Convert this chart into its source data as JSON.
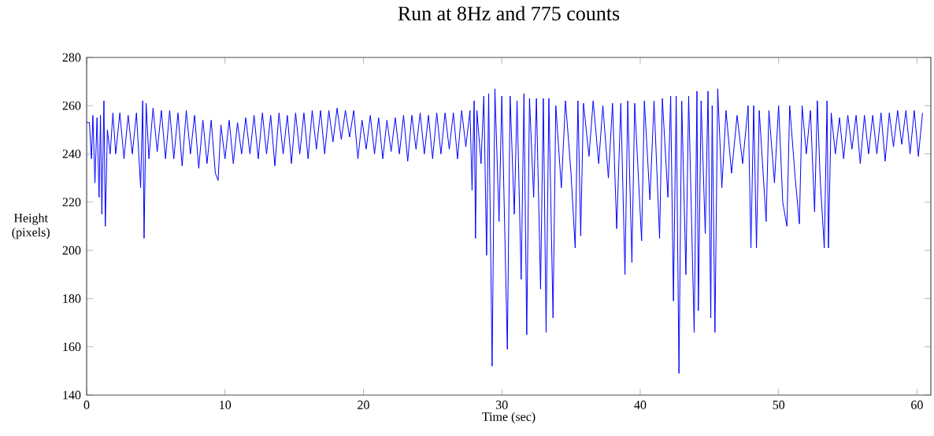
{
  "chart_data": {
    "type": "line",
    "title": "Run at 8Hz and 775 counts",
    "xlabel": "Time (sec)",
    "ylabel": "Height (pixels)",
    "x": [
      0.0,
      0.2,
      0.35,
      0.45,
      0.6,
      0.75,
      0.9,
      1.0,
      1.1,
      1.25,
      1.35,
      1.5,
      1.7,
      1.9,
      2.1,
      2.4,
      2.7,
      3.0,
      3.3,
      3.6,
      3.9,
      4.05,
      4.15,
      4.3,
      4.5,
      4.8,
      5.1,
      5.4,
      5.7,
      6.0,
      6.3,
      6.6,
      6.9,
      7.2,
      7.5,
      7.8,
      8.1,
      8.4,
      8.7,
      9.0,
      9.3,
      9.5,
      9.7,
      10.0,
      10.3,
      10.6,
      10.9,
      11.2,
      11.5,
      11.8,
      12.1,
      12.4,
      12.7,
      13.0,
      13.3,
      13.6,
      13.9,
      14.2,
      14.5,
      14.8,
      15.1,
      15.4,
      15.7,
      16.0,
      16.3,
      16.6,
      16.9,
      17.2,
      17.5,
      17.8,
      18.1,
      18.4,
      18.7,
      19.0,
      19.3,
      19.6,
      19.9,
      20.2,
      20.5,
      20.8,
      21.1,
      21.4,
      21.7,
      22.0,
      22.3,
      22.6,
      22.9,
      23.2,
      23.5,
      23.8,
      24.1,
      24.4,
      24.7,
      25.0,
      25.3,
      25.6,
      25.9,
      26.2,
      26.5,
      26.8,
      27.1,
      27.4,
      27.7,
      27.85,
      28.0,
      28.1,
      28.2,
      28.5,
      28.7,
      28.9,
      29.05,
      29.3,
      29.5,
      29.8,
      30.0,
      30.4,
      30.6,
      30.9,
      31.1,
      31.4,
      31.6,
      31.8,
      32.0,
      32.3,
      32.5,
      32.8,
      33.0,
      33.2,
      33.4,
      33.7,
      33.9,
      34.3,
      34.6,
      35.0,
      35.3,
      35.5,
      35.7,
      35.9,
      36.3,
      36.6,
      37.0,
      37.3,
      37.7,
      38.0,
      38.3,
      38.6,
      38.9,
      39.1,
      39.4,
      39.6,
      40.1,
      40.3,
      40.7,
      41.0,
      41.4,
      41.6,
      42.0,
      42.2,
      42.4,
      42.6,
      42.8,
      43.0,
      43.3,
      43.5,
      43.9,
      44.1,
      44.2,
      44.4,
      44.7,
      44.9,
      45.1,
      45.2,
      45.4,
      45.6,
      45.9,
      46.2,
      46.6,
      47.0,
      47.4,
      47.8,
      48.0,
      48.2,
      48.4,
      48.6,
      49.1,
      49.3,
      49.7,
      50.0,
      50.3,
      50.6,
      50.8,
      51.2,
      51.5,
      51.7,
      52.0,
      52.3,
      52.6,
      52.8,
      53.0,
      53.3,
      53.5,
      53.6,
      53.8,
      54.1,
      54.4,
      54.7,
      55.0,
      55.3,
      55.6,
      55.9,
      56.2,
      56.5,
      56.8,
      57.1,
      57.4,
      57.7,
      58.0,
      58.3,
      58.6,
      58.9,
      59.2,
      59.5,
      59.8,
      60.1,
      60.4
    ],
    "series": [
      {
        "color": "#0000ff",
        "values": [
          253,
          253,
          238,
          256,
          228,
          255,
          222,
          256,
          215,
          262,
          210,
          250,
          240,
          257,
          240,
          257,
          238,
          256,
          240,
          257,
          226,
          262,
          205,
          261,
          238,
          259,
          241,
          258,
          238,
          258,
          238,
          257,
          235,
          258,
          240,
          256,
          234,
          254,
          236,
          254,
          232,
          229,
          252,
          238,
          254,
          236,
          253,
          240,
          255,
          240,
          256,
          238,
          257,
          240,
          256,
          235,
          257,
          240,
          256,
          236,
          257,
          240,
          257,
          238,
          258,
          242,
          258,
          240,
          258,
          245,
          259,
          246,
          258,
          247,
          258,
          238,
          254,
          242,
          256,
          240,
          255,
          238,
          254,
          241,
          255,
          240,
          256,
          237,
          256,
          242,
          257,
          240,
          256,
          238,
          257,
          240,
          257,
          242,
          257,
          238,
          258,
          243,
          258,
          225,
          262,
          205,
          258,
          236,
          264,
          198,
          265,
          152,
          267,
          212,
          264,
          159,
          264,
          215,
          262,
          188,
          265,
          165,
          263,
          222,
          263,
          184,
          263,
          166,
          263,
          172,
          260,
          226,
          262,
          232,
          201,
          262,
          206,
          261,
          239,
          262,
          236,
          260,
          230,
          261,
          209,
          261,
          190,
          262,
          195,
          261,
          204,
          262,
          221,
          262,
          205,
          263,
          222,
          264,
          179,
          264,
          149,
          262,
          190,
          264,
          166,
          266,
          175,
          262,
          207,
          266,
          172,
          260,
          166,
          267,
          226,
          258,
          232,
          256,
          236,
          260,
          201,
          260,
          201,
          258,
          212,
          258,
          228,
          260,
          220,
          210,
          260,
          230,
          211,
          260,
          240,
          258,
          216,
          262,
          230,
          201,
          262,
          201,
          257,
          240,
          255,
          238,
          256,
          242,
          256,
          236,
          256,
          240,
          256,
          240,
          257,
          237,
          257,
          243,
          258,
          244,
          258,
          240,
          258,
          239,
          257
        ]
      }
    ],
    "xlim": [
      0,
      61
    ],
    "ylim": [
      140,
      280
    ],
    "xticks": [
      0,
      10,
      20,
      30,
      40,
      50,
      60
    ],
    "yticks": [
      140,
      160,
      180,
      200,
      220,
      240,
      260,
      280
    ]
  }
}
